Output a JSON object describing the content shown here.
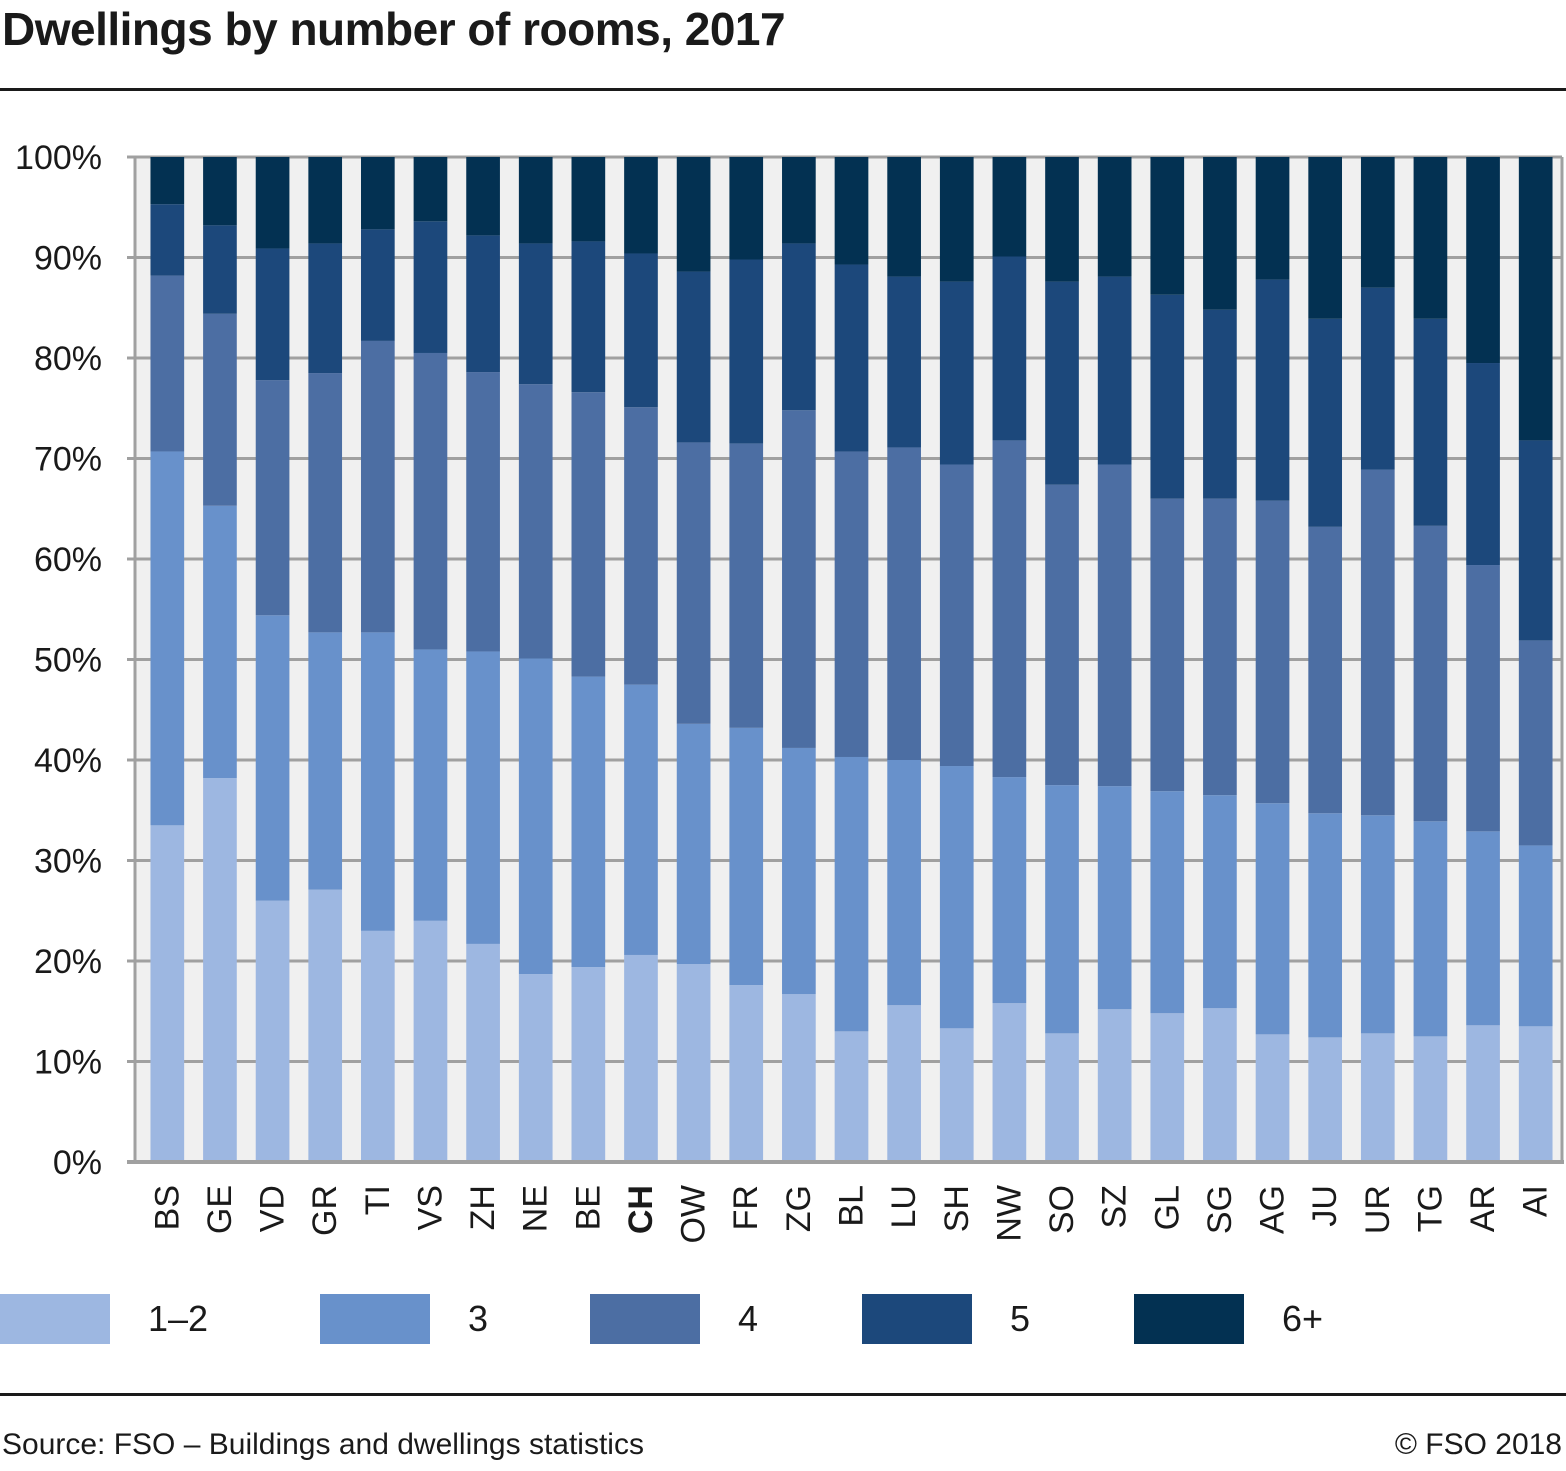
{
  "chart_data": {
    "type": "bar",
    "stacked": true,
    "title": "Dwellings by number of rooms, 2017",
    "xlabel": "",
    "ylabel": "",
    "ylim": [
      0,
      100
    ],
    "y_ticks": [
      "0%",
      "10%",
      "20%",
      "30%",
      "40%",
      "50%",
      "60%",
      "70%",
      "80%",
      "90%",
      "100%"
    ],
    "grid": true,
    "legend_position": "bottom",
    "highlight_category": "CH",
    "categories": [
      "BS",
      "GE",
      "VD",
      "GR",
      "TI",
      "VS",
      "ZH",
      "NE",
      "BE",
      "CH",
      "OW",
      "FR",
      "ZG",
      "BL",
      "LU",
      "SH",
      "NW",
      "SO",
      "SZ",
      "GL",
      "SG",
      "AG",
      "JU",
      "UR",
      "TG",
      "AR",
      "AI"
    ],
    "series": [
      {
        "name": "1–2",
        "color": "#9db7e1",
        "values": [
          33.5,
          38.2,
          26.0,
          27.1,
          23.0,
          24.0,
          21.7,
          18.7,
          19.4,
          20.6,
          19.7,
          17.6,
          16.7,
          13.0,
          15.6,
          13.3,
          15.8,
          12.8,
          15.2,
          14.8,
          15.3,
          12.7,
          12.4,
          12.8,
          12.5,
          13.6,
          13.5
        ]
      },
      {
        "name": "3",
        "color": "#6891cb",
        "values": [
          37.2,
          27.1,
          28.4,
          25.6,
          29.7,
          27.0,
          29.1,
          31.4,
          28.9,
          26.9,
          23.9,
          25.6,
          24.5,
          27.3,
          24.4,
          26.1,
          22.5,
          24.7,
          22.2,
          22.1,
          21.2,
          23.0,
          22.3,
          21.7,
          21.4,
          19.3,
          18.0
        ]
      },
      {
        "name": "4",
        "color": "#4c6ea3",
        "values": [
          17.5,
          19.1,
          23.4,
          25.8,
          29.0,
          29.5,
          27.8,
          27.3,
          28.3,
          27.6,
          28.0,
          28.3,
          33.6,
          30.4,
          31.1,
          30.0,
          33.5,
          29.9,
          32.0,
          29.1,
          29.5,
          30.1,
          28.5,
          34.4,
          29.4,
          26.5,
          20.4
        ]
      },
      {
        "name": "5",
        "color": "#1c487b",
        "values": [
          7.1,
          8.8,
          13.1,
          12.9,
          11.1,
          13.1,
          13.6,
          14.0,
          15.0,
          15.3,
          17.0,
          18.3,
          16.6,
          18.6,
          17.0,
          18.2,
          18.3,
          20.2,
          18.7,
          20.3,
          18.8,
          22.0,
          20.7,
          18.1,
          20.6,
          20.1,
          19.9
        ]
      },
      {
        "name": "6+",
        "color": "#033152",
        "values": [
          4.7,
          6.8,
          9.1,
          8.6,
          7.2,
          6.4,
          7.8,
          8.6,
          8.4,
          9.6,
          11.4,
          10.2,
          8.6,
          10.7,
          11.9,
          12.4,
          9.9,
          12.4,
          11.9,
          13.7,
          15.2,
          12.2,
          16.1,
          13.0,
          16.1,
          20.5,
          28.2
        ]
      }
    ]
  },
  "footer": {
    "source": "Source: FSO – Buildings and dwellings statistics",
    "copyright": "© FSO 2018"
  }
}
